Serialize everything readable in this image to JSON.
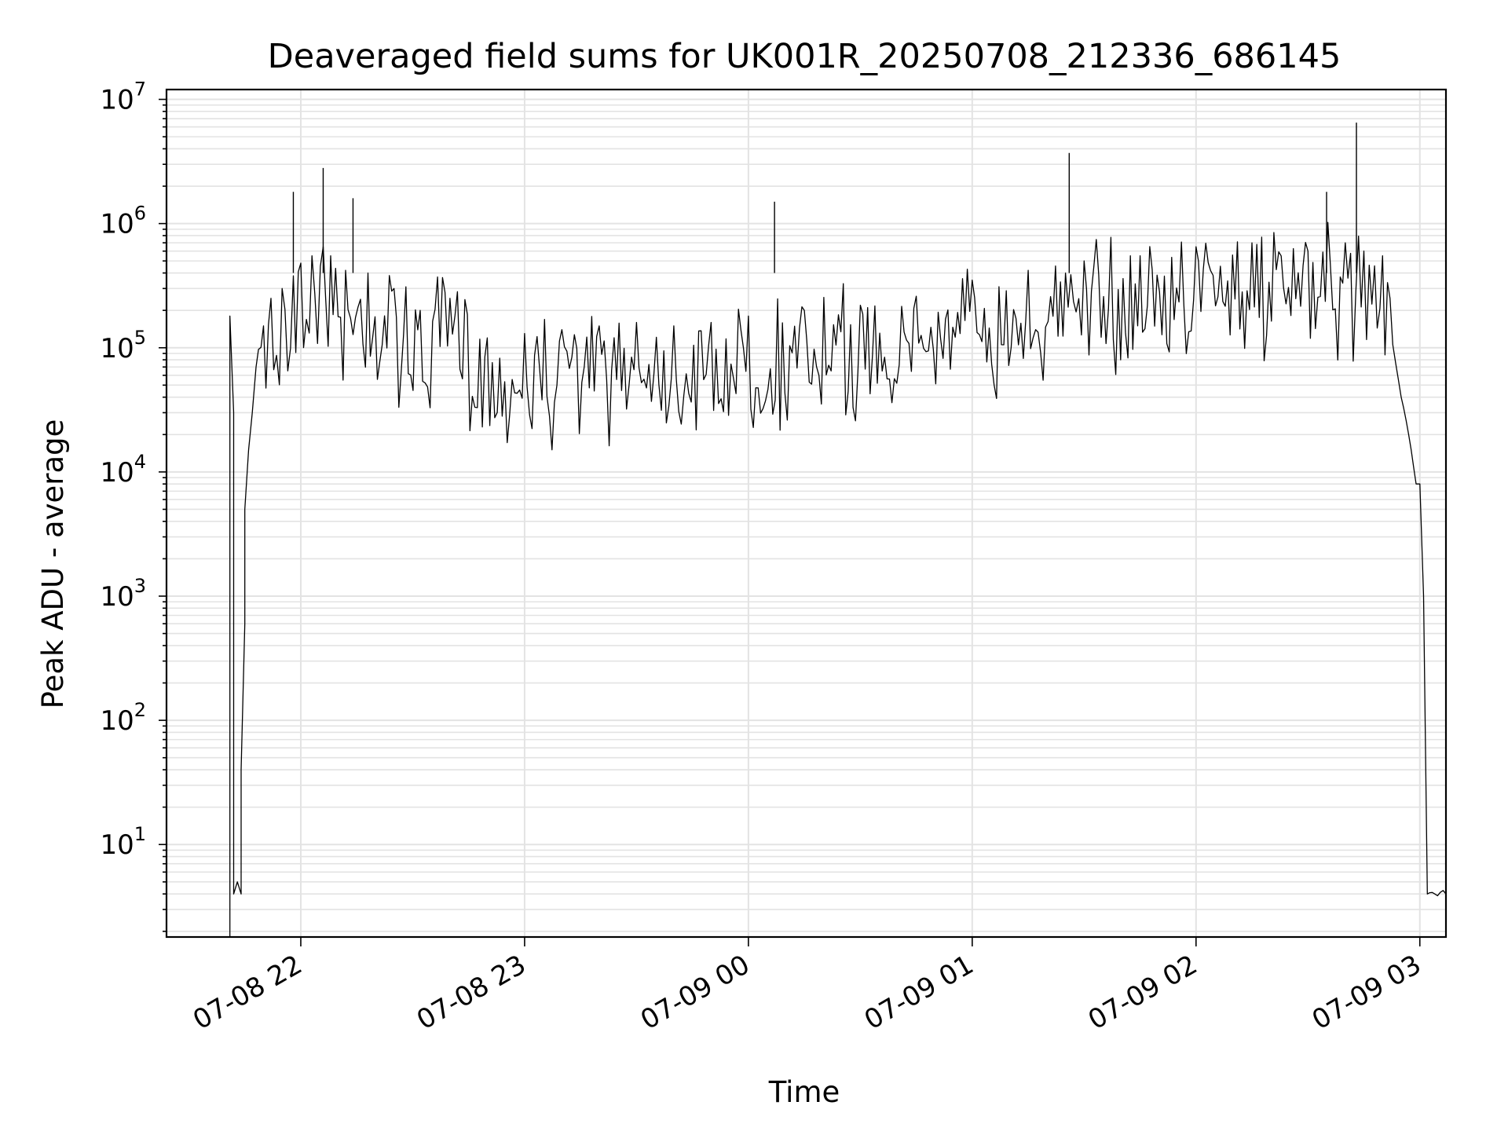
{
  "chart_data": {
    "type": "line",
    "title": "Deaveraged field sums for UK001R_20250708_212336_686145",
    "xlabel": "Time",
    "ylabel": "Peak ADU - average",
    "x_ticks": [
      "07-08 22",
      "07-08 23",
      "07-09 00",
      "07-09 01",
      "07-09 02",
      "07-09 03"
    ],
    "y_ticks": [
      {
        "base": "10",
        "exp": "1"
      },
      {
        "base": "10",
        "exp": "2"
      },
      {
        "base": "10",
        "exp": "3"
      },
      {
        "base": "10",
        "exp": "4"
      },
      {
        "base": "10",
        "exp": "5"
      },
      {
        "base": "10",
        "exp": "6"
      },
      {
        "base": "10",
        "exp": "7"
      }
    ],
    "y_scale": "log",
    "grid": true,
    "line_color": "#000000",
    "grid_color": "#e3e3e3",
    "xlim": [
      "2025-07-08 21:24",
      "2025-07-09 03:07"
    ],
    "ylim": [
      1.8,
      12000000
    ],
    "series": [
      {
        "x": [
          "2025-07-08 21:41",
          "2025-07-08 21:41",
          "2025-07-08 21:42",
          "2025-07-08 21:42",
          "2025-07-08 21:42",
          "2025-07-08 21:43",
          "2025-07-08 21:44",
          "2025-07-08 21:44",
          "2025-07-08 21:45",
          "2025-07-08 21:45",
          "2025-07-08 21:46",
          "2025-07-08 21:47",
          "2025-07-08 21:48",
          "2025-07-08 21:50",
          "2025-07-08 21:52",
          "2025-07-08 21:55",
          "2025-07-08 21:58",
          "2025-07-08 22:00",
          "2025-07-08 22:03",
          "2025-07-08 22:06",
          "2025-07-08 22:08",
          "2025-07-08 22:12",
          "2025-07-08 22:18",
          "2025-07-08 22:25",
          "2025-07-08 22:32",
          "2025-07-08 22:40",
          "2025-07-08 22:50",
          "2025-07-08 23:00",
          "2025-07-08 23:10",
          "2025-07-08 23:20",
          "2025-07-08 23:30",
          "2025-07-08 23:40",
          "2025-07-08 23:50",
          "2025-07-09 00:00",
          "2025-07-09 00:15",
          "2025-07-09 00:30",
          "2025-07-09 00:45",
          "2025-07-09 01:00",
          "2025-07-09 01:15",
          "2025-07-09 01:25",
          "2025-07-09 01:30",
          "2025-07-09 01:45",
          "2025-07-09 02:00",
          "2025-07-09 02:15",
          "2025-07-09 02:30",
          "2025-07-09 02:40",
          "2025-07-09 02:45",
          "2025-07-09 02:50",
          "2025-07-09 02:52",
          "2025-07-09 02:55",
          "2025-07-09 02:57",
          "2025-07-09 02:59",
          "2025-07-09 03:00",
          "2025-07-09 03:01",
          "2025-07-09 03:02",
          "2025-07-09 03:04",
          "2025-07-09 03:07"
        ],
        "y": [
          1.8,
          180000,
          30000,
          4,
          4,
          5,
          4,
          40,
          600,
          5000,
          15000,
          30000,
          70000,
          150000,
          250000,
          300000,
          380000,
          480000,
          550000,
          650000,
          550000,
          420000,
          400000,
          300000,
          200000,
          250000,
          120000,
          130000,
          140000,
          150000,
          160000,
          150000,
          160000,
          180000,
          200000,
          220000,
          260000,
          350000,
          420000,
          400000,
          500000,
          550000,
          650000,
          700000,
          600000,
          700000,
          600000,
          550000,
          250000,
          40000,
          20000,
          8000,
          8000,
          1000,
          4,
          4,
          4
        ]
      }
    ],
    "spikes": [
      {
        "x": "2025-07-08 21:58",
        "y": 1800000
      },
      {
        "x": "2025-07-08 22:06",
        "y": 2800000
      },
      {
        "x": "2025-07-08 22:14",
        "y": 1600000
      },
      {
        "x": "2025-07-09 00:07",
        "y": 1500000
      },
      {
        "x": "2025-07-09 01:26",
        "y": 3700000
      },
      {
        "x": "2025-07-09 02:35",
        "y": 1800000
      },
      {
        "x": "2025-07-09 02:43",
        "y": 6500000
      }
    ]
  }
}
